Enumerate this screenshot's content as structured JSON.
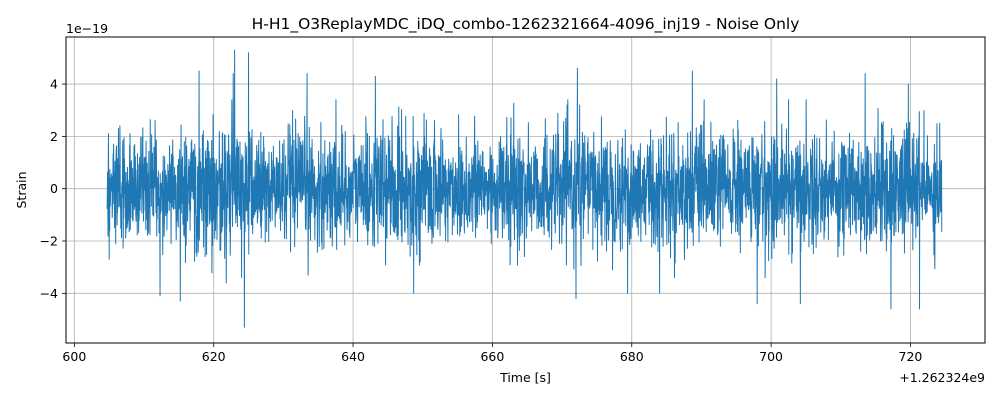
{
  "chart_data": {
    "type": "line",
    "title": "H-H1_O3ReplayMDC_iDQ_combo-1262321664-4096_inj19 - Noise Only",
    "xlabel": "Time [s]",
    "ylabel": "Strain",
    "x_offset_label": "+1.262324e9",
    "y_scale_label": "1e−19",
    "xlim": [
      598.8,
      730.7
    ],
    "ylim": [
      -5.9,
      5.8
    ],
    "x_ticks": [
      600,
      620,
      640,
      660,
      680,
      700,
      720
    ],
    "x_tick_labels": [
      "600",
      "620",
      "640",
      "660",
      "680",
      "700",
      "720"
    ],
    "y_ticks": [
      -4,
      -2,
      0,
      2,
      4
    ],
    "y_tick_labels": [
      "−4",
      "−2",
      "0",
      "2",
      "4"
    ],
    "grid": true,
    "series_color": "#1f77b4",
    "series": [
      {
        "x_range": [
          604.7,
          724.5
        ],
        "typical_amplitude": 2.0,
        "sample_peaks": [
          {
            "x": 604.9,
            "y": 2.1
          },
          {
            "x": 605.0,
            "y": -2.7
          },
          {
            "x": 612.3,
            "y": -4.1
          },
          {
            "x": 615.2,
            "y": -4.3
          },
          {
            "x": 617.9,
            "y": 4.5
          },
          {
            "x": 621.8,
            "y": -3.6
          },
          {
            "x": 622.8,
            "y": 4.4
          },
          {
            "x": 624.4,
            "y": -5.3
          },
          {
            "x": 623.0,
            "y": 5.3
          },
          {
            "x": 625.0,
            "y": 5.2
          },
          {
            "x": 633.4,
            "y": 4.4
          },
          {
            "x": 643.2,
            "y": 4.3
          },
          {
            "x": 648.7,
            "y": -4.0
          },
          {
            "x": 672.2,
            "y": 4.6
          },
          {
            "x": 672.0,
            "y": -4.2
          },
          {
            "x": 679.4,
            "y": -4.0
          },
          {
            "x": 684.0,
            "y": -4.0
          },
          {
            "x": 688.7,
            "y": 4.5
          },
          {
            "x": 698.0,
            "y": -4.4
          },
          {
            "x": 700.8,
            "y": 4.2
          },
          {
            "x": 704.2,
            "y": -4.4
          },
          {
            "x": 713.5,
            "y": 4.4
          },
          {
            "x": 717.2,
            "y": -4.6
          },
          {
            "x": 719.7,
            "y": 4.0
          },
          {
            "x": 721.3,
            "y": -4.6
          },
          {
            "x": 724.2,
            "y": 2.5
          }
        ]
      }
    ]
  }
}
